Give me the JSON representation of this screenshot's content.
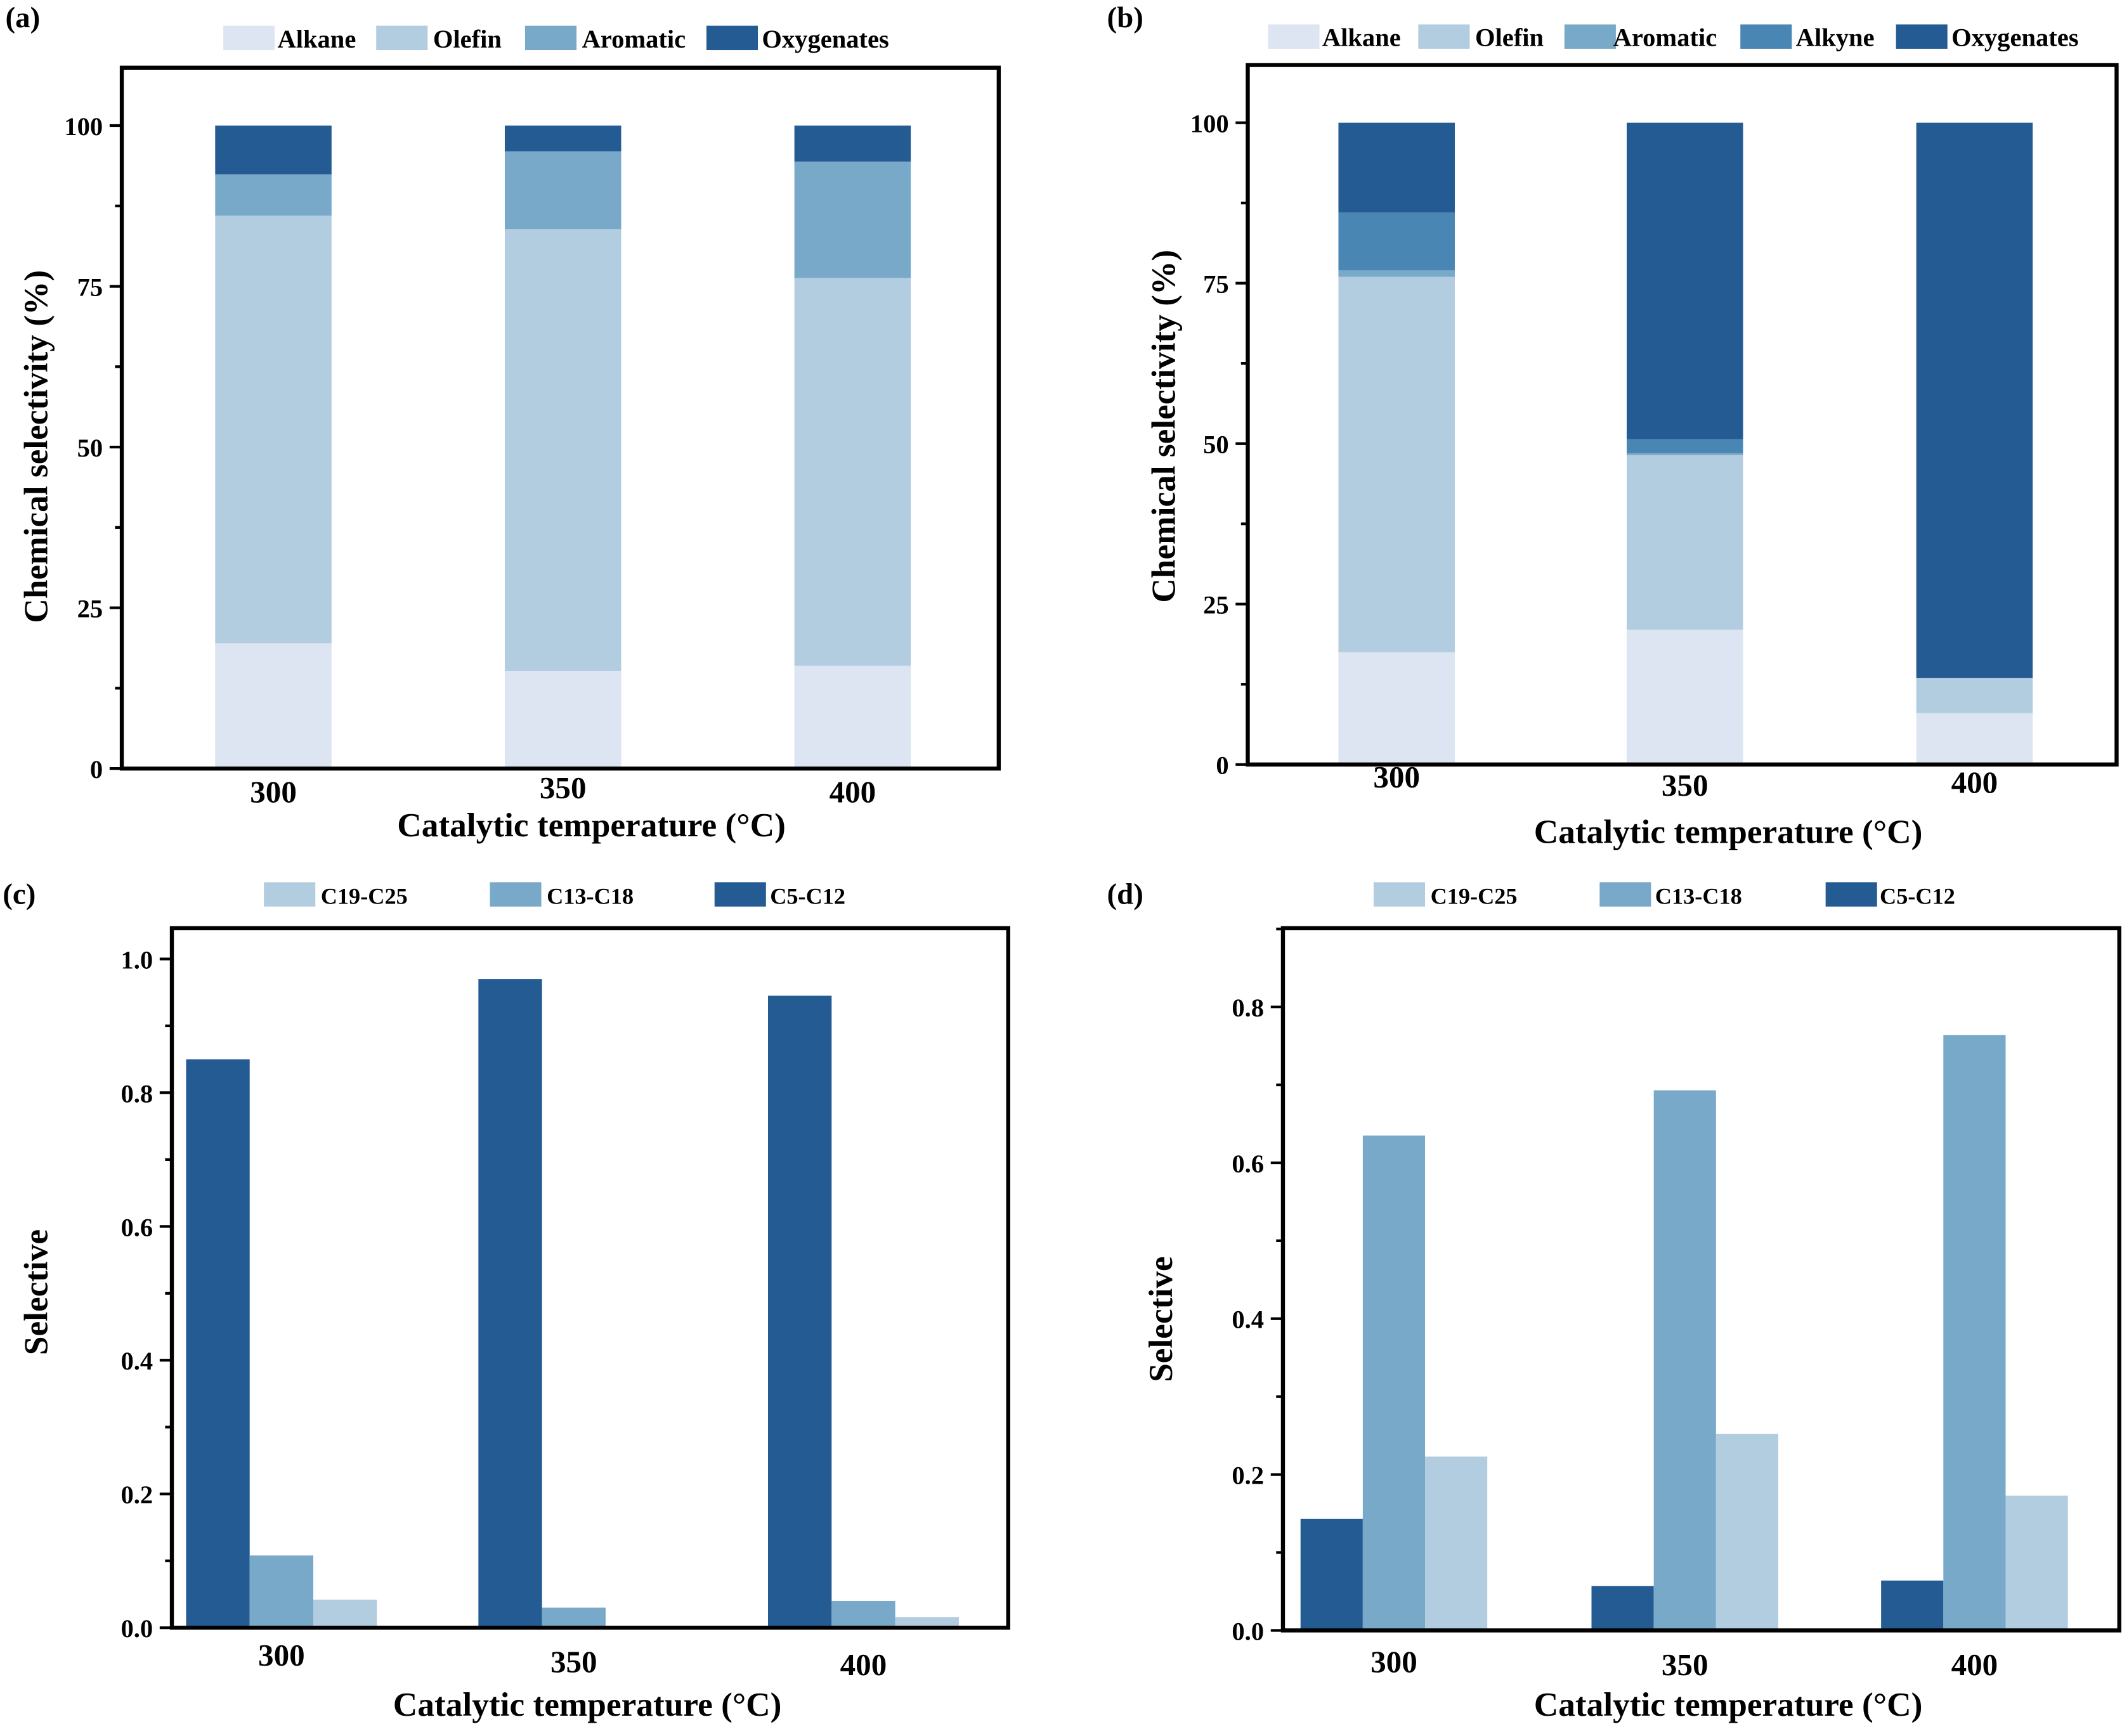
{
  "colors": {
    "alkane": "#dce5f1",
    "olefin": "#b3cde0",
    "aromatic": "#79a9c9",
    "alkyne": "#4a86b4",
    "oxygenates": "#235b92",
    "c19": "#b3cde0",
    "c13": "#79a9c9",
    "c5": "#235b92"
  },
  "chart_data": [
    {
      "panel": "(a)",
      "type": "bar",
      "stacked": true,
      "categories": [
        "300",
        "350",
        "400"
      ],
      "xlabel": "Catalytic temperature (°C)",
      "ylabel": "Chemical selectivity (%)",
      "ylim": [
        0,
        109
      ],
      "yticks": [
        "0",
        "25",
        "50",
        "75",
        "100"
      ],
      "legend": "top",
      "series": [
        {
          "name": "Alkane",
          "color": "#dce5f1",
          "values": [
            19.5,
            15.2,
            16.0
          ]
        },
        {
          "name": "Olefin",
          "color": "#b3cde0",
          "values": [
            66.5,
            68.7,
            60.3
          ]
        },
        {
          "name": "Aromatic",
          "color": "#79a9c9",
          "values": [
            6.4,
            12.1,
            18.1
          ]
        },
        {
          "name": "Oxygenates",
          "color": "#235b92",
          "values": [
            7.6,
            4.0,
            5.6
          ]
        }
      ]
    },
    {
      "panel": "(b)",
      "type": "bar",
      "stacked": true,
      "categories": [
        "300",
        "350",
        "400"
      ],
      "xlabel": "Catalytic temperature (°C)",
      "ylabel": "Chemical selectivity (%)",
      "ylim": [
        0,
        109
      ],
      "yticks": [
        "0",
        "25",
        "50",
        "75",
        "100"
      ],
      "legend": "top",
      "series": [
        {
          "name": "Alkane",
          "color": "#dce5f1",
          "values": [
            17.5,
            21.0,
            8.0
          ]
        },
        {
          "name": "Olefin",
          "color": "#b3cde0",
          "values": [
            58.5,
            27.2,
            5.5
          ]
        },
        {
          "name": "Aromatic",
          "color": "#79a9c9",
          "values": [
            1.0,
            0.3,
            0
          ]
        },
        {
          "name": "Alkyne",
          "color": "#4a86b4",
          "values": [
            9.0,
            2.2,
            0
          ]
        },
        {
          "name": "Oxygenates",
          "color": "#235b92",
          "values": [
            14.0,
            49.3,
            86.5
          ]
        }
      ]
    },
    {
      "panel": "(c)",
      "type": "bar",
      "stacked": false,
      "categories": [
        "300",
        "350",
        "400"
      ],
      "xlabel": "Catalytic temperature (°C)",
      "ylabel": "Selective",
      "ylim": [
        0,
        1.046
      ],
      "yticks": [
        "0.0",
        "0.2",
        "0.4",
        "0.6",
        "0.8",
        "1.0"
      ],
      "legend": "top",
      "legend_order": [
        "C19-C25",
        "C13-C18",
        "C5-C12"
      ],
      "series": [
        {
          "name": "C5-C12",
          "color": "#235b92",
          "values": [
            0.85,
            0.97,
            0.945
          ]
        },
        {
          "name": "C13-C18",
          "color": "#79a9c9",
          "values": [
            0.108,
            0.03,
            0.04
          ]
        },
        {
          "name": "C19-C25",
          "color": "#b3cde0",
          "values": [
            0.042,
            0.0,
            0.016
          ]
        }
      ]
    },
    {
      "panel": "(d)",
      "type": "bar",
      "stacked": false,
      "categories": [
        "300",
        "350",
        "400"
      ],
      "xlabel": "Catalytic temperature (°C)",
      "ylabel": "Selective",
      "ylim": [
        0,
        0.901
      ],
      "yticks": [
        "0.0",
        "0.2",
        "0.4",
        "0.6",
        "0.8"
      ],
      "legend": "top",
      "legend_order": [
        "C19-C25",
        "C13-C18",
        "C5-C12"
      ],
      "series": [
        {
          "name": "C5-C12",
          "color": "#235b92",
          "values": [
            0.143,
            0.057,
            0.064
          ]
        },
        {
          "name": "C13-C18",
          "color": "#79a9c9",
          "values": [
            0.635,
            0.693,
            0.764
          ]
        },
        {
          "name": "C19-C25",
          "color": "#b3cde0",
          "values": [
            0.223,
            0.252,
            0.173
          ]
        }
      ]
    }
  ]
}
